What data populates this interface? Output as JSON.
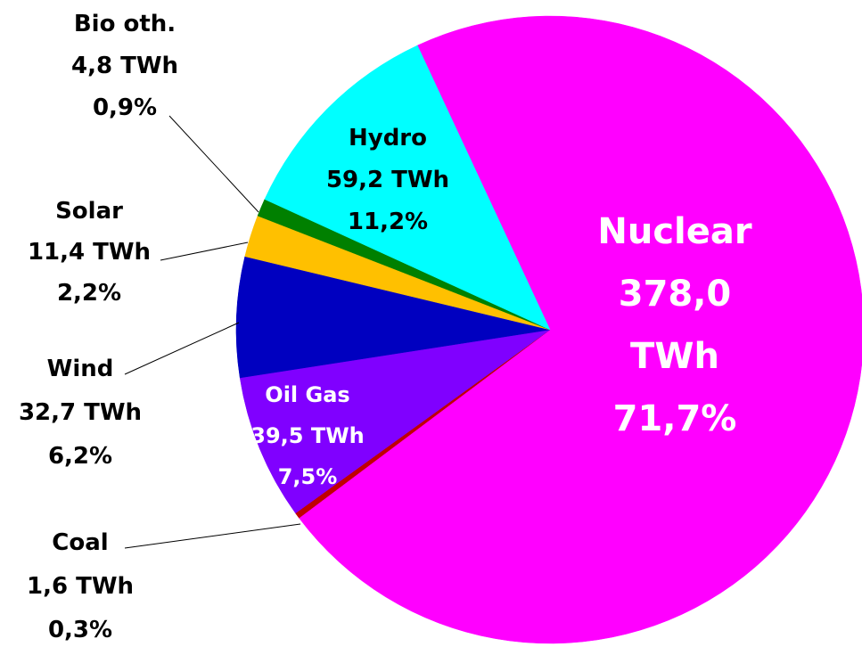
{
  "chart_data": {
    "type": "pie",
    "categories": [
      "Nuclear",
      "Coal",
      "Oil Gas",
      "Wind",
      "Solar",
      "Bio oth.",
      "Hydro"
    ],
    "values": [
      378.0,
      1.6,
      39.5,
      32.7,
      11.4,
      4.8,
      59.2
    ],
    "value_labels": [
      "378,0 TWh",
      "1,6 TWh",
      "39,5 TWh",
      "32,7 TWh",
      "11,4 TWh",
      "4,8 TWh",
      "59,2 TWh"
    ],
    "percents": [
      71.7,
      0.3,
      7.5,
      6.2,
      2.2,
      0.9,
      11.2
    ],
    "percent_labels": [
      "71,7%",
      "0,3%",
      "7,5%",
      "6,2%",
      "2,2%",
      "0,9%",
      "11,2%"
    ],
    "colors": [
      "#ff00ff",
      "#c00000",
      "#8000ff",
      "#0000c0",
      "#ffc000",
      "#008000",
      "#00ffff"
    ]
  }
}
